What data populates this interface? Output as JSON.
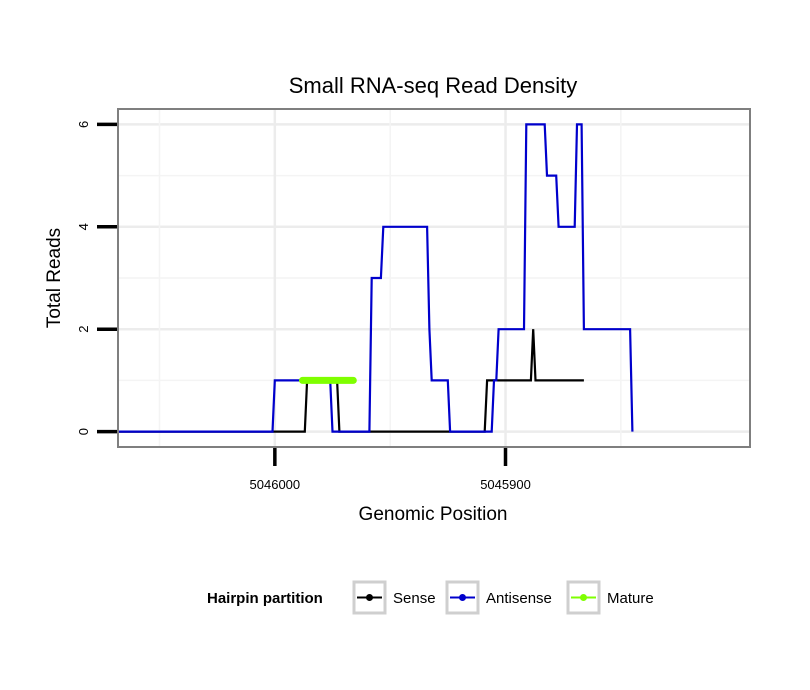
{
  "chart_data": {
    "type": "line",
    "title": "Small RNA-seq Read Density",
    "xlabel": "Genomic Position",
    "ylabel": "Total Reads",
    "x_reversed": true,
    "xlim": [
      5046068,
      5045794
    ],
    "ylim": [
      -0.3,
      6.3
    ],
    "x_ticks": [
      5046000,
      5045900
    ],
    "y_ticks": [
      0,
      2,
      4,
      6
    ],
    "grid": true,
    "legend_position": "bottom",
    "legend_title": "Hairpin partition",
    "series": [
      {
        "name": "Sense",
        "color": "#000000",
        "points": [
          [
            5046072,
            0
          ],
          [
            5045987,
            0
          ],
          [
            5045986,
            1
          ],
          [
            5045973,
            1
          ],
          [
            5045972,
            0
          ],
          [
            5045909,
            0
          ],
          [
            5045908,
            1
          ],
          [
            5045889,
            1
          ],
          [
            5045888,
            2
          ],
          [
            5045887,
            1
          ],
          [
            5045866,
            1
          ]
        ]
      },
      {
        "name": "Antisense",
        "color": "#0000cc",
        "points": [
          [
            5046072,
            0
          ],
          [
            5046001,
            0
          ],
          [
            5046000,
            1
          ],
          [
            5045976,
            1
          ],
          [
            5045975,
            0
          ],
          [
            5045959,
            0
          ],
          [
            5045958,
            3
          ],
          [
            5045954,
            3
          ],
          [
            5045953,
            4
          ],
          [
            5045934,
            4
          ],
          [
            5045933,
            2
          ],
          [
            5045932,
            1
          ],
          [
            5045925,
            1
          ],
          [
            5045924,
            0
          ],
          [
            5045906,
            0
          ],
          [
            5045905,
            1
          ],
          [
            5045904,
            1
          ],
          [
            5045903,
            2
          ],
          [
            5045892,
            2
          ],
          [
            5045891,
            6
          ],
          [
            5045883,
            6
          ],
          [
            5045882,
            5
          ],
          [
            5045878,
            5
          ],
          [
            5045877,
            4
          ],
          [
            5045870,
            4
          ],
          [
            5045869,
            6
          ],
          [
            5045867,
            6
          ],
          [
            5045866,
            2
          ],
          [
            5045846,
            2
          ],
          [
            5045845,
            0
          ]
        ]
      },
      {
        "name": "Mature",
        "color": "#7fff00",
        "points": [
          [
            5045988,
            1
          ],
          [
            5045966,
            1
          ]
        ]
      }
    ]
  }
}
